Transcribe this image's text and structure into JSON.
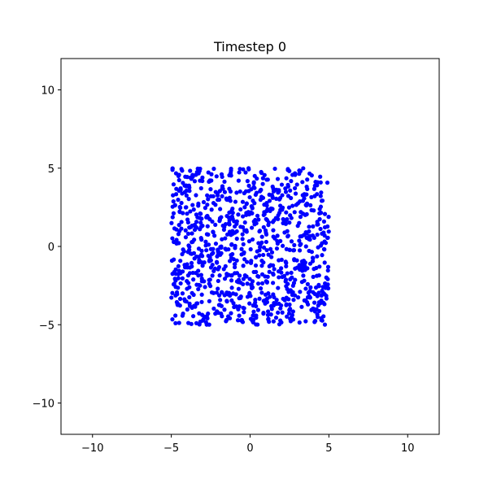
{
  "chart_data": {
    "type": "scatter",
    "title": "Timestep 0",
    "xlabel": "",
    "ylabel": "",
    "xlim": [
      -12,
      12
    ],
    "ylim": [
      -12,
      12
    ],
    "x_ticks": [
      -10,
      -5,
      0,
      5,
      10
    ],
    "y_ticks": [
      -10,
      -5,
      0,
      5,
      10
    ],
    "x_tick_labels": [
      "−10",
      "−5",
      "0",
      "5",
      "10"
    ],
    "y_tick_labels": [
      "−10",
      "−5",
      "0",
      "5",
      "10"
    ],
    "grid": false,
    "legend": "none",
    "point_color": "#0000ff",
    "point_count": 1000,
    "distribution": "uniform",
    "x_range": [
      -5,
      5
    ],
    "y_range": [
      -5,
      5
    ],
    "seed": 7
  }
}
